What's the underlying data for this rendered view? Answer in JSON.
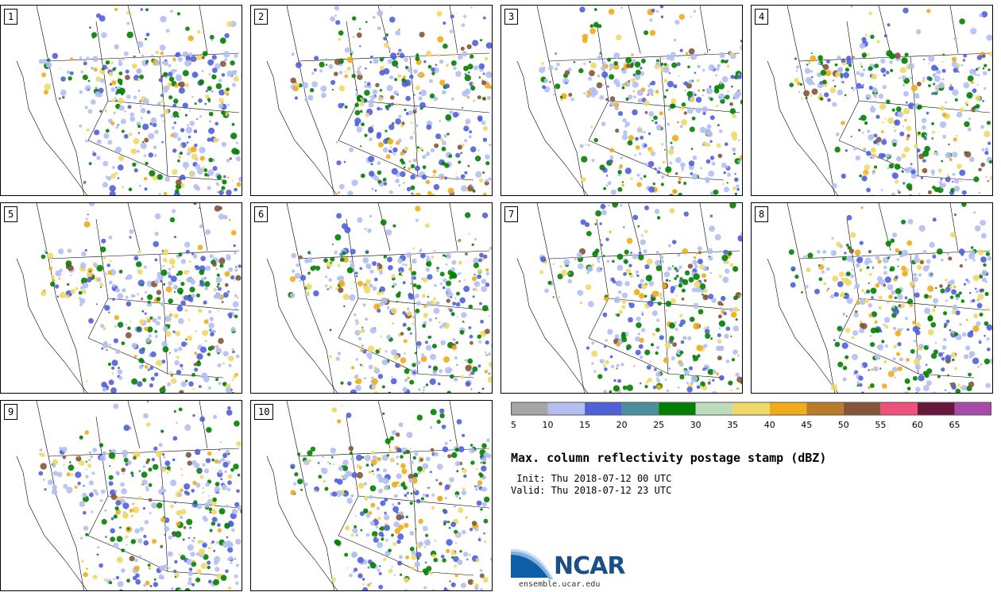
{
  "members": [
    "1",
    "2",
    "3",
    "4",
    "5",
    "6",
    "7",
    "8",
    "9",
    "10"
  ],
  "title": "Max. column reflectivity postage stamp (dBZ)",
  "init": " Init: Thu 2018-07-12 00 UTC",
  "valid": "Valid: Thu 2018-07-12 23 UTC",
  "colorbar": {
    "ticks": [
      "5",
      "10",
      "15",
      "20",
      "25",
      "30",
      "35",
      "40",
      "45",
      "50",
      "55",
      "60",
      "65"
    ],
    "colors": [
      "#a6a6a6",
      "#b4bff0",
      "#5060d8",
      "#4b8f9c",
      "#007f00",
      "#bcdcbc",
      "#efd968",
      "#f0ac1a",
      "#b87c2c",
      "#85553a",
      "#f0507c",
      "#65183a",
      "#a84aa8"
    ]
  },
  "logo": {
    "name": "NCAR",
    "url": "ensemble.ucar.edu"
  }
}
